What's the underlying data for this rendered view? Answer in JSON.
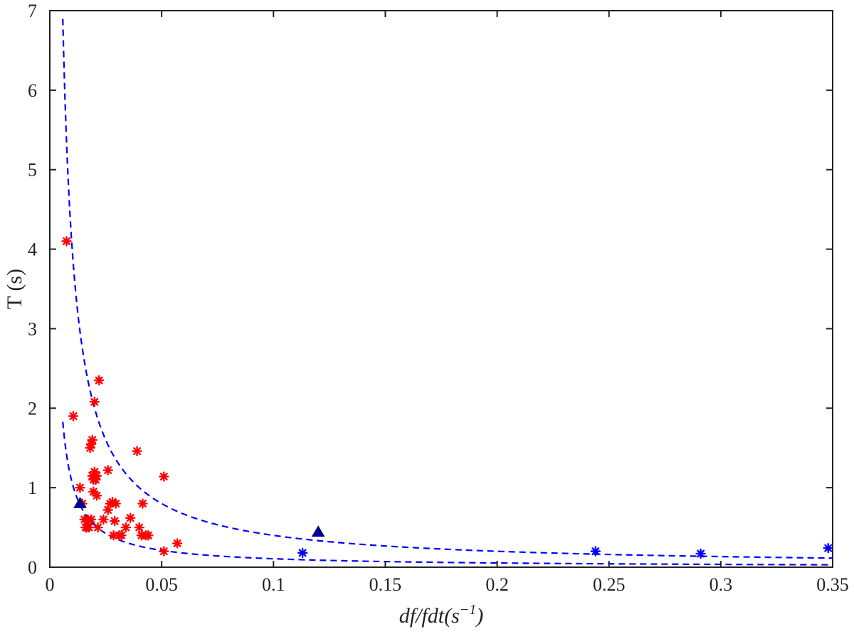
{
  "chart_data": {
    "type": "scatter",
    "title": "",
    "xlabel": "df/fdt(s",
    "xlabel_sup": "−1",
    "xlabel_close": ")",
    "ylabel": "T (s)",
    "xlim": [
      0,
      0.35
    ],
    "ylim": [
      0,
      7
    ],
    "grid": false,
    "legend": "none",
    "x_ticks": [
      0,
      0.05,
      0.1,
      0.15,
      0.2,
      0.25,
      0.3,
      0.35
    ],
    "x_tick_labels": [
      "0",
      "0.05",
      "0.1",
      "0.15",
      "0.2",
      "0.25",
      "0.3",
      "0.35"
    ],
    "y_ticks": [
      0,
      1,
      2,
      3,
      4,
      5,
      6,
      7
    ],
    "y_tick_labels": [
      "0",
      "1",
      "2",
      "3",
      "4",
      "5",
      "6",
      "7"
    ],
    "colors": {
      "red": "#ff0000",
      "blue": "#0000ff",
      "triangle": "#00008b",
      "axis": "#222222"
    },
    "series": [
      {
        "marker": "asterisk",
        "color": "#ff0000",
        "points": [
          [
            0.0075,
            4.1
          ],
          [
            0.0105,
            1.9
          ],
          [
            0.0135,
            1.0
          ],
          [
            0.0145,
            0.8
          ],
          [
            0.0155,
            0.6
          ],
          [
            0.016,
            0.5
          ],
          [
            0.0165,
            0.5
          ],
          [
            0.017,
            0.6
          ],
          [
            0.0175,
            0.5
          ],
          [
            0.018,
            1.5
          ],
          [
            0.0185,
            1.55
          ],
          [
            0.0185,
            0.6
          ],
          [
            0.019,
            1.6
          ],
          [
            0.019,
            1.15
          ],
          [
            0.0195,
            1.1
          ],
          [
            0.0195,
            0.95
          ],
          [
            0.02,
            1.2
          ],
          [
            0.02,
            2.08
          ],
          [
            0.0205,
            1.1
          ],
          [
            0.021,
            1.15
          ],
          [
            0.021,
            0.9
          ],
          [
            0.0215,
            0.5
          ],
          [
            0.022,
            2.35
          ],
          [
            0.024,
            0.6
          ],
          [
            0.026,
            1.22
          ],
          [
            0.026,
            0.72
          ],
          [
            0.027,
            0.8
          ],
          [
            0.028,
            0.82
          ],
          [
            0.0285,
            0.4
          ],
          [
            0.029,
            0.58
          ],
          [
            0.0295,
            0.8
          ],
          [
            0.031,
            0.4
          ],
          [
            0.032,
            0.4
          ],
          [
            0.034,
            0.5
          ],
          [
            0.036,
            0.62
          ],
          [
            0.039,
            1.46
          ],
          [
            0.04,
            0.5
          ],
          [
            0.041,
            0.4
          ],
          [
            0.0415,
            0.8
          ],
          [
            0.043,
            0.4
          ],
          [
            0.044,
            0.4
          ],
          [
            0.051,
            1.14
          ],
          [
            0.051,
            0.2
          ],
          [
            0.057,
            0.3
          ]
        ]
      },
      {
        "marker": "asterisk",
        "color": "#0000ff",
        "points": [
          [
            0.113,
            0.18
          ],
          [
            0.244,
            0.2
          ],
          [
            0.291,
            0.17
          ],
          [
            0.348,
            0.24
          ]
        ]
      },
      {
        "marker": "triangle",
        "color": "#00008b",
        "points": [
          [
            0.0135,
            0.8
          ],
          [
            0.12,
            0.44
          ]
        ]
      },
      {
        "marker": "dashed-curve",
        "color": "#0000ff",
        "formula": "T = 0.04 / x",
        "x_from": 0.0058,
        "x_to": 0.35
      },
      {
        "marker": "dashed-curve",
        "color": "#0000ff",
        "formula": "T = 0.0106 / x",
        "x_from": 0.0058,
        "x_to": 0.35
      }
    ]
  }
}
